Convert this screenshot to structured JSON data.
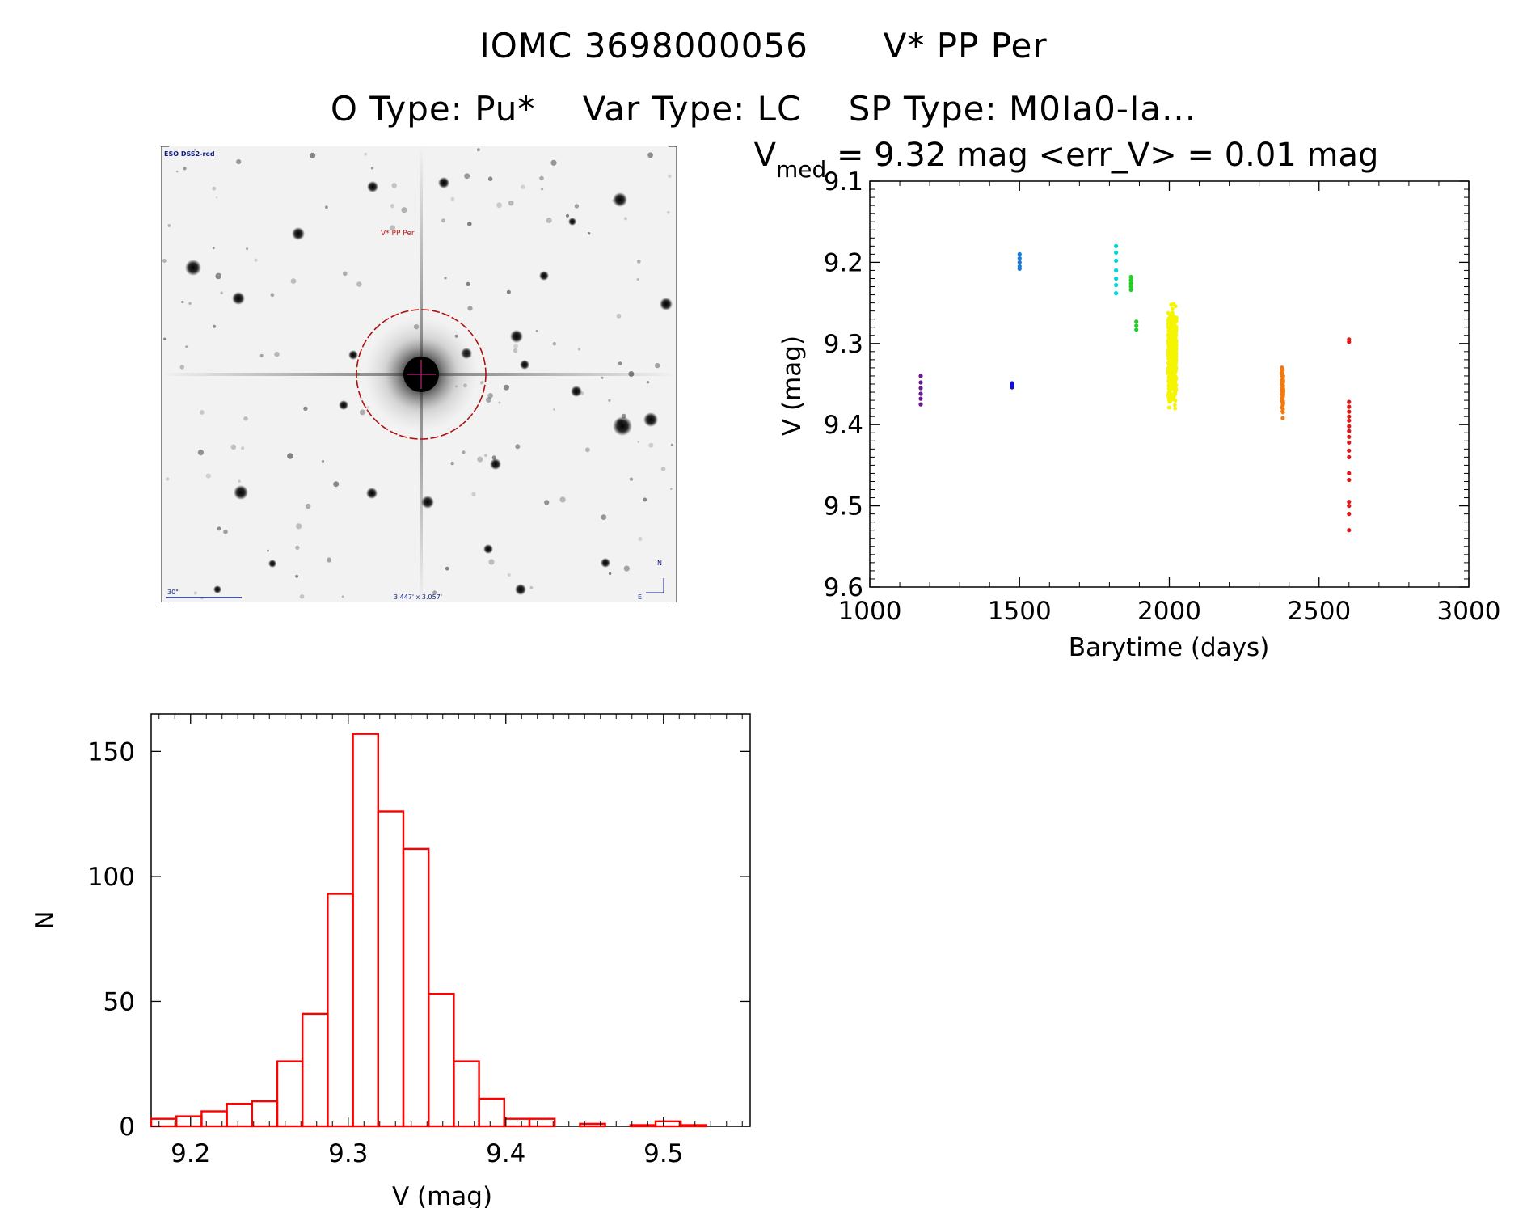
{
  "header": {
    "object_id": "IOMC 3698000056",
    "star_name": "V* PP Per",
    "o_type": "O Type: Pu*",
    "var_type": "Var Type: LC",
    "sp_type": "SP Type: M0Ia0-Ia..."
  },
  "finder": {
    "survey_label": "ESO DSS2-red",
    "target_label": "V* PP Per",
    "scale_label": "30\"",
    "fov_label": "3.447' x 3.057'",
    "north_label": "N",
    "east_label": "E"
  },
  "chart_data": [
    {
      "type": "scatter",
      "title_prefix": "V",
      "title_subscript": "med",
      "title_rest": " = 9.32 mag <err_V> = 0.01 mag",
      "xlabel": "Barytime (days)",
      "ylabel": "V (mag)",
      "xlim": [
        1000,
        3000
      ],
      "ylim": [
        9.6,
        9.1
      ],
      "y_inverted": true,
      "xticks": [
        1000,
        1500,
        2000,
        2500,
        3000
      ],
      "yticks": [
        9.1,
        9.2,
        9.3,
        9.4,
        9.5,
        9.6
      ],
      "series": [
        {
          "color": "#6a1a8a",
          "points": [
            [
              1170,
              9.34
            ],
            [
              1170,
              9.348
            ],
            [
              1170,
              9.355
            ],
            [
              1170,
              9.362
            ],
            [
              1170,
              9.368
            ],
            [
              1170,
              9.375
            ]
          ]
        },
        {
          "color": "#1010d0",
          "points": [
            [
              1475,
              9.349
            ],
            [
              1475,
              9.352
            ],
            [
              1475,
              9.354
            ]
          ]
        },
        {
          "color": "#1a7ad8",
          "points": [
            [
              1500,
              9.19
            ],
            [
              1500,
              9.195
            ],
            [
              1500,
              9.2
            ],
            [
              1500,
              9.205
            ],
            [
              1500,
              9.208
            ]
          ]
        },
        {
          "color": "#00d8d8",
          "points": [
            [
              1822,
              9.18
            ],
            [
              1822,
              9.188
            ],
            [
              1822,
              9.198
            ],
            [
              1822,
              9.21
            ],
            [
              1822,
              9.22
            ],
            [
              1822,
              9.228
            ],
            [
              1822,
              9.238
            ]
          ]
        },
        {
          "color": "#22d022",
          "points": [
            [
              1872,
              9.218
            ],
            [
              1872,
              9.222
            ],
            [
              1872,
              9.226
            ],
            [
              1872,
              9.23
            ],
            [
              1872,
              9.234
            ],
            [
              1890,
              9.273
            ],
            [
              1890,
              9.278
            ],
            [
              1890,
              9.283
            ]
          ]
        },
        {
          "color": "#f5f500",
          "x_center": 2010,
          "x_spread": 14,
          "y_min": 9.24,
          "y_max": 9.39,
          "count": 520
        },
        {
          "color": "#ee7a10",
          "x_center": 2378,
          "x_spread": 3,
          "y_min": 9.315,
          "y_max": 9.4,
          "count": 70
        },
        {
          "color": "#e01818",
          "points": [
            [
              2600,
              9.295
            ],
            [
              2600,
              9.298
            ],
            [
              2600,
              9.372
            ],
            [
              2600,
              9.378
            ],
            [
              2600,
              9.384
            ],
            [
              2600,
              9.39
            ],
            [
              2600,
              9.395
            ],
            [
              2600,
              9.402
            ],
            [
              2600,
              9.408
            ],
            [
              2600,
              9.415
            ],
            [
              2600,
              9.422
            ],
            [
              2600,
              9.432
            ],
            [
              2600,
              9.44
            ],
            [
              2600,
              9.46
            ],
            [
              2600,
              9.468
            ],
            [
              2600,
              9.495
            ],
            [
              2600,
              9.5
            ],
            [
              2600,
              9.51
            ],
            [
              2600,
              9.53
            ]
          ]
        }
      ]
    },
    {
      "type": "bar",
      "subtype": "histogram",
      "xlabel": "V (mag)",
      "ylabel": "N",
      "xlim": [
        9.175,
        9.555
      ],
      "ylim": [
        0,
        165
      ],
      "xticks": [
        9.2,
        9.3,
        9.4,
        9.5
      ],
      "yticks": [
        0,
        50,
        100,
        150
      ],
      "color": "#ff0000",
      "bins": [
        {
          "x0": 9.175,
          "x1": 9.191,
          "n": 3
        },
        {
          "x0": 9.191,
          "x1": 9.207,
          "n": 4
        },
        {
          "x0": 9.207,
          "x1": 9.223,
          "n": 6
        },
        {
          "x0": 9.223,
          "x1": 9.239,
          "n": 9
        },
        {
          "x0": 9.239,
          "x1": 9.255,
          "n": 10
        },
        {
          "x0": 9.255,
          "x1": 9.271,
          "n": 26
        },
        {
          "x0": 9.271,
          "x1": 9.287,
          "n": 45
        },
        {
          "x0": 9.287,
          "x1": 9.303,
          "n": 93
        },
        {
          "x0": 9.303,
          "x1": 9.319,
          "n": 157
        },
        {
          "x0": 9.319,
          "x1": 9.335,
          "n": 126
        },
        {
          "x0": 9.335,
          "x1": 9.351,
          "n": 111
        },
        {
          "x0": 9.351,
          "x1": 9.367,
          "n": 53
        },
        {
          "x0": 9.367,
          "x1": 9.383,
          "n": 26
        },
        {
          "x0": 9.383,
          "x1": 9.399,
          "n": 11
        },
        {
          "x0": 9.399,
          "x1": 9.415,
          "n": 3
        },
        {
          "x0": 9.415,
          "x1": 9.431,
          "n": 3
        },
        {
          "x0": 9.431,
          "x1": 9.447,
          "n": 0
        },
        {
          "x0": 9.447,
          "x1": 9.463,
          "n": 1
        },
        {
          "x0": 9.463,
          "x1": 9.479,
          "n": 0
        },
        {
          "x0": 9.479,
          "x1": 9.495,
          "n": 0.5
        },
        {
          "x0": 9.495,
          "x1": 9.511,
          "n": 2
        },
        {
          "x0": 9.511,
          "x1": 9.527,
          "n": 0.5
        }
      ]
    }
  ]
}
